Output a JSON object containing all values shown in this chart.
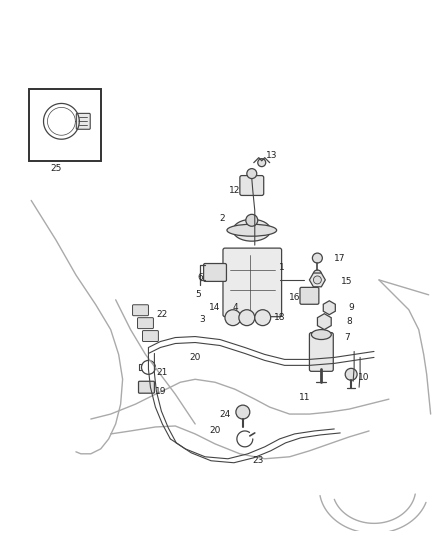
{
  "bg_color": "#ffffff",
  "line_color": "#aaaaaa",
  "dark_line": "#666666",
  "part_line": "#444444",
  "fig_width": 4.38,
  "fig_height": 5.33,
  "dpi": 100,
  "label_fontsize": 6.5,
  "label_color": "#222222"
}
